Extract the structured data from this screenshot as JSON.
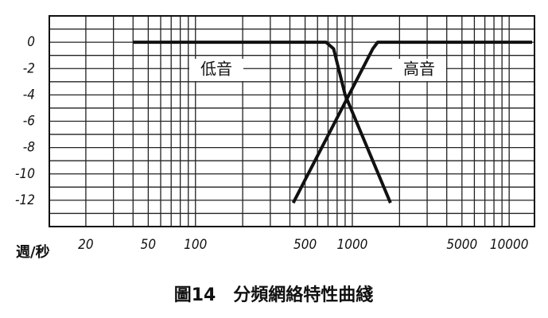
{
  "chart_data": {
    "type": "line",
    "title": "圖14　分頻網絡特性曲綫",
    "x_axis_label": "週/秒",
    "log_x": true,
    "xlim": [
      11.7,
      14500
    ],
    "ylim": [
      -14,
      2
    ],
    "xticks": [
      20,
      50,
      100,
      500,
      1000,
      5000,
      10000
    ],
    "yticks": [
      0,
      -2,
      -4,
      -6,
      -8,
      -10,
      -12
    ],
    "xgrid": [
      20,
      30,
      40,
      50,
      60,
      70,
      80,
      90,
      100,
      200,
      300,
      400,
      500,
      600,
      700,
      800,
      900,
      1000,
      2000,
      3000,
      4000,
      5000,
      6000,
      7000,
      8000,
      9000,
      10000
    ],
    "ygrid": [
      2,
      1,
      0,
      -1,
      -2,
      -3,
      -4,
      -5,
      -6,
      -7,
      -8,
      -9,
      -10,
      -11,
      -12,
      -13,
      -14
    ],
    "series": [
      {
        "name": "低音",
        "color": "#111111",
        "x": [
          40,
          680,
          760,
          900,
          1750
        ],
        "values": [
          0,
          0,
          -0.5,
          -4,
          -12.2
        ]
      },
      {
        "name": "高音",
        "color": "#111111",
        "x": [
          420,
          1350,
          1450,
          14000
        ],
        "values": [
          -12.2,
          -0.5,
          0,
          0
        ]
      }
    ]
  }
}
